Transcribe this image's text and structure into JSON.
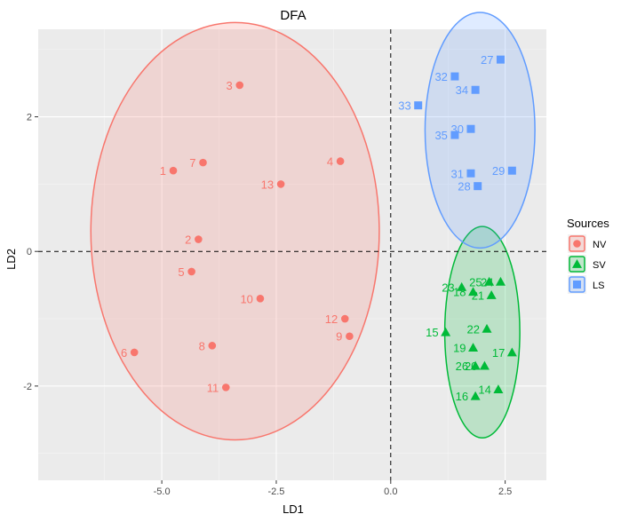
{
  "chart_data": {
    "type": "scatter",
    "title": "DFA",
    "xlabel": "LD1",
    "ylabel": "LD2",
    "xlim": [
      -7.7,
      3.4
    ],
    "ylim": [
      -3.4,
      3.3
    ],
    "x_ticks": [
      -5.0,
      -2.5,
      0.0,
      2.5
    ],
    "x_tick_labels": [
      "-5.0",
      "-2.5",
      "0.0",
      "2.5"
    ],
    "y_ticks": [
      -2,
      0,
      2
    ],
    "y_tick_labels": [
      "-2",
      "0",
      "2"
    ],
    "grid": true,
    "reference_lines": {
      "x": 0,
      "y": 0,
      "style": "dashed"
    },
    "legend": {
      "title": "Sources",
      "position": "right"
    },
    "series": [
      {
        "name": "NV",
        "color": "#F8766D",
        "shape": "circle",
        "ellipse": {
          "cx": -3.4,
          "cy": 0.3,
          "rx": 3.15,
          "ry": 3.1
        },
        "points": [
          {
            "label": "1",
            "x": -4.75,
            "y": 1.2
          },
          {
            "label": "2",
            "x": -4.2,
            "y": 0.18
          },
          {
            "label": "3",
            "x": -3.3,
            "y": 2.47
          },
          {
            "label": "4",
            "x": -1.1,
            "y": 1.34
          },
          {
            "label": "5",
            "x": -4.35,
            "y": -0.3
          },
          {
            "label": "6",
            "x": -5.6,
            "y": -1.5
          },
          {
            "label": "7",
            "x": -4.1,
            "y": 1.32
          },
          {
            "label": "8",
            "x": -3.9,
            "y": -1.4
          },
          {
            "label": "9",
            "x": -0.9,
            "y": -1.26
          },
          {
            "label": "10",
            "x": -2.85,
            "y": -0.7
          },
          {
            "label": "11",
            "x": -3.6,
            "y": -2.02
          },
          {
            "label": "12",
            "x": -1.0,
            "y": -1.0
          },
          {
            "label": "13",
            "x": -2.4,
            "y": 1.0
          }
        ]
      },
      {
        "name": "SV",
        "color": "#00BA38",
        "shape": "triangle",
        "ellipse": {
          "cx": 2.0,
          "cy": -1.2,
          "rx": 0.82,
          "ry": 1.57
        },
        "points": [
          {
            "label": "14",
            "x": 2.35,
            "y": -2.05
          },
          {
            "label": "15",
            "x": 1.2,
            "y": -1.2
          },
          {
            "label": "16",
            "x": 1.85,
            "y": -2.15
          },
          {
            "label": "17",
            "x": 2.65,
            "y": -1.5
          },
          {
            "label": "18",
            "x": 1.8,
            "y": -0.6
          },
          {
            "label": "19",
            "x": 1.8,
            "y": -1.43
          },
          {
            "label": "20",
            "x": 2.05,
            "y": -1.7
          },
          {
            "label": "21",
            "x": 2.2,
            "y": -0.65
          },
          {
            "label": "22",
            "x": 2.1,
            "y": -1.15
          },
          {
            "label": "23",
            "x": 1.55,
            "y": -0.53
          },
          {
            "label": "24",
            "x": 2.4,
            "y": -0.45
          },
          {
            "label": "25",
            "x": 2.15,
            "y": -0.45
          },
          {
            "label": "26",
            "x": 1.85,
            "y": -1.7
          }
        ]
      },
      {
        "name": "LS",
        "color": "#619CFF",
        "shape": "square",
        "ellipse": {
          "cx": 1.95,
          "cy": 1.8,
          "rx": 1.2,
          "ry": 1.75
        },
        "points": [
          {
            "label": "27",
            "x": 2.4,
            "y": 2.85
          },
          {
            "label": "28",
            "x": 1.9,
            "y": 0.97
          },
          {
            "label": "29",
            "x": 2.65,
            "y": 1.2
          },
          {
            "label": "30",
            "x": 1.75,
            "y": 1.82
          },
          {
            "label": "31",
            "x": 1.75,
            "y": 1.16
          },
          {
            "label": "32",
            "x": 1.4,
            "y": 2.6
          },
          {
            "label": "33",
            "x": 0.6,
            "y": 2.17
          },
          {
            "label": "34",
            "x": 1.85,
            "y": 2.4
          },
          {
            "label": "35",
            "x": 1.4,
            "y": 1.73
          }
        ]
      }
    ]
  }
}
